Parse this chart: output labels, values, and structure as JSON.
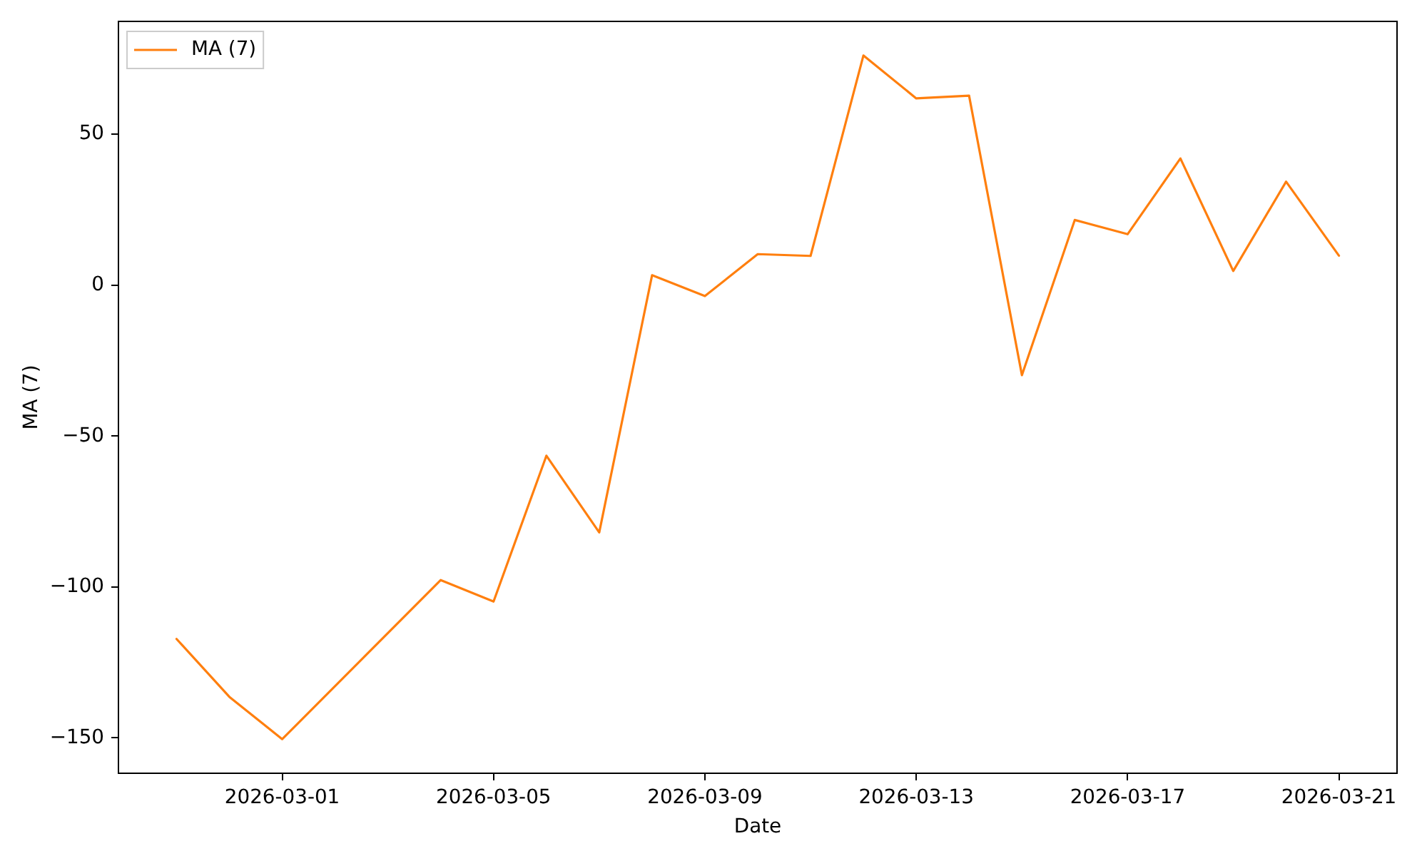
{
  "chart_data": {
    "type": "line",
    "x": [
      "2026-02-27",
      "2026-02-28",
      "2026-03-01",
      "2026-03-04",
      "2026-03-05",
      "2026-03-06",
      "2026-03-07",
      "2026-03-08",
      "2026-03-09",
      "2026-03-10",
      "2026-03-11",
      "2026-03-12",
      "2026-03-13",
      "2026-03-14",
      "2026-03-15",
      "2026-03-16",
      "2026-03-17",
      "2026-03-18",
      "2026-03-19",
      "2026-03-20",
      "2026-03-21"
    ],
    "series": [
      {
        "name": "MA (7)",
        "color": "#ff7f0e",
        "values": [
          -117.2,
          -136.4,
          -150.4,
          -97.7,
          -104.8,
          -56.5,
          -81.9,
          3.3,
          -3.6,
          10.3,
          9.7,
          76.1,
          61.9,
          62.8,
          -29.8,
          21.6,
          16.9,
          42.0,
          4.7,
          34.3,
          9.8
        ]
      }
    ],
    "xlabel": "Date",
    "ylabel": "MA (7)",
    "xlim": [
      "2026-02-25T21:36",
      "2026-03-22T02:24"
    ],
    "xticks": [
      "2026-03-01",
      "2026-03-05",
      "2026-03-09",
      "2026-03-13",
      "2026-03-17",
      "2026-03-21"
    ],
    "ylim": [
      -161.7,
      87.4
    ],
    "yticks": [
      -150,
      -100,
      -50,
      0,
      50
    ],
    "legend": "top left",
    "marker": "none",
    "line_style": "solid"
  }
}
